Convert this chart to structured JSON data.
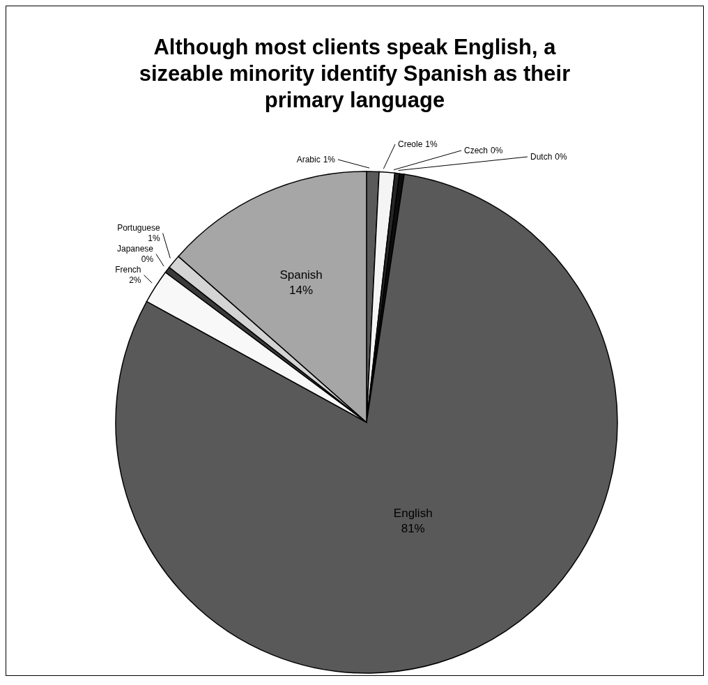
{
  "chart_data": {
    "type": "pie",
    "title": "Although most clients speak English, a sizeable minority identify Spanish as their primary language",
    "categories": [
      "Arabic",
      "Creole",
      "Czech",
      "Dutch",
      "English",
      "French",
      "Japanese",
      "Portuguese",
      "Spanish"
    ],
    "values": [
      0.8,
      1.0,
      0.3,
      0.3,
      80.6,
      2.2,
      0.4,
      0.9,
      13.5
    ],
    "value_labels": [
      "1%",
      "1%",
      "0%",
      "0%",
      "81%",
      "2%",
      "0%",
      "1%",
      "14%"
    ],
    "colors": [
      "#5a5a5a",
      "#f4f4f4",
      "#262626",
      "#0d0d0d",
      "#595959",
      "#f8f8f8",
      "#3a3a3a",
      "#d4d4d4",
      "#a6a6a6"
    ],
    "legend": false
  }
}
